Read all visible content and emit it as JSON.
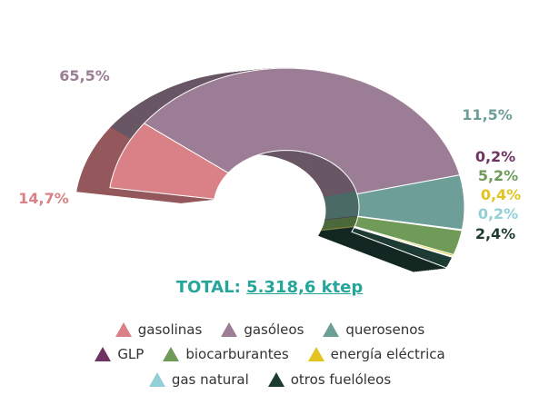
{
  "chart_data": {
    "type": "pie",
    "variant": "3d-semi-donut",
    "categories": [
      "gasolinas",
      "gasóleos",
      "querosenos",
      "GLP",
      "biocarburantes",
      "energía eléctrica",
      "gas natural",
      "otros fuelóleos"
    ],
    "values": [
      14.7,
      65.5,
      11.5,
      0.2,
      5.2,
      0.4,
      0.2,
      2.4
    ],
    "value_labels": [
      "14,7%",
      "65,5%",
      "11,5%",
      "0,2%",
      "5,2%",
      "0,4%",
      "0,2%",
      "2,4%"
    ],
    "colors": [
      "#d98187",
      "#9b7e95",
      "#6e9e98",
      "#6e3360",
      "#6f9a57",
      "#e2c31f",
      "#92cfd7",
      "#1d3b33"
    ],
    "total_label": "TOTAL:",
    "total_value": "5.318,6 ktep",
    "legend_position": "bottom"
  }
}
